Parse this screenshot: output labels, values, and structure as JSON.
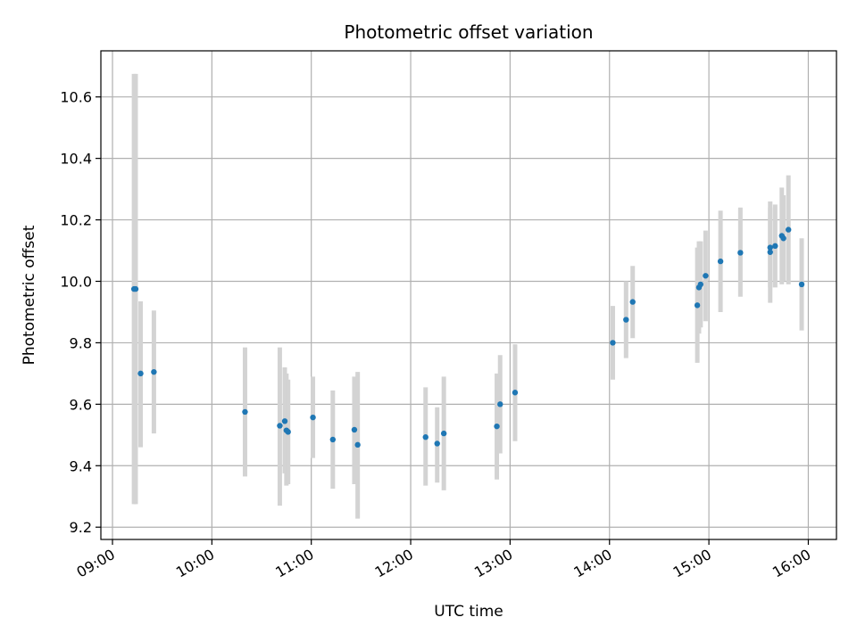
{
  "chart_data": {
    "type": "scatter",
    "title": "Photometric offset variation",
    "xlabel": "UTC time",
    "ylabel": "Photometric offset",
    "x_tick_labels": [
      "09:00",
      "10:00",
      "11:00",
      "12:00",
      "13:00",
      "14:00",
      "15:00",
      "16:00"
    ],
    "y_tick_labels": [
      "9.2",
      "9.4",
      "9.6",
      "9.8",
      "10.0",
      "10.2",
      "10.4",
      "10.6"
    ],
    "x_ticks": [
      "09:00",
      "10:00",
      "11:00",
      "12:00",
      "13:00",
      "14:00",
      "15:00",
      "16:00"
    ],
    "y_ticks": [
      9.2,
      9.4,
      9.6,
      9.8,
      10.0,
      10.2,
      10.4,
      10.6
    ],
    "xlim": [
      "08:53",
      "16:17"
    ],
    "ylim": [
      9.16,
      10.75
    ],
    "grid": true,
    "colors": {
      "point": "#1f77b4",
      "errorbar": "#d3d3d3",
      "grid": "#b0b0b0"
    },
    "points": [
      {
        "x": "09:13",
        "y": 9.975,
        "ylow": 9.275,
        "yhigh": 10.675
      },
      {
        "x": "09:14",
        "y": 9.975,
        "ylow": 9.275,
        "yhigh": 10.675
      },
      {
        "x": "09:17",
        "y": 9.7,
        "ylow": 9.46,
        "yhigh": 9.935
      },
      {
        "x": "09:25",
        "y": 9.705,
        "ylow": 9.505,
        "yhigh": 9.905
      },
      {
        "x": "10:20",
        "y": 9.575,
        "ylow": 9.365,
        "yhigh": 9.785
      },
      {
        "x": "10:41",
        "y": 9.53,
        "ylow": 9.27,
        "yhigh": 9.785
      },
      {
        "x": "10:44",
        "y": 9.545,
        "ylow": 9.375,
        "yhigh": 9.72
      },
      {
        "x": "10:45",
        "y": 9.515,
        "ylow": 9.335,
        "yhigh": 9.7
      },
      {
        "x": "10:46",
        "y": 9.51,
        "ylow": 9.34,
        "yhigh": 9.68
      },
      {
        "x": "11:01",
        "y": 9.557,
        "ylow": 9.425,
        "yhigh": 9.69
      },
      {
        "x": "11:13",
        "y": 9.485,
        "ylow": 9.325,
        "yhigh": 9.645
      },
      {
        "x": "11:26",
        "y": 9.517,
        "ylow": 9.34,
        "yhigh": 9.69
      },
      {
        "x": "11:28",
        "y": 9.468,
        "ylow": 9.228,
        "yhigh": 9.705
      },
      {
        "x": "12:09",
        "y": 9.493,
        "ylow": 9.335,
        "yhigh": 9.655
      },
      {
        "x": "12:16",
        "y": 9.472,
        "ylow": 9.345,
        "yhigh": 9.59
      },
      {
        "x": "12:20",
        "y": 9.505,
        "ylow": 9.32,
        "yhigh": 9.69
      },
      {
        "x": "12:52",
        "y": 9.528,
        "ylow": 9.355,
        "yhigh": 9.7
      },
      {
        "x": "12:54",
        "y": 9.6,
        "ylow": 9.44,
        "yhigh": 9.76
      },
      {
        "x": "13:03",
        "y": 9.638,
        "ylow": 9.48,
        "yhigh": 9.795
      },
      {
        "x": "14:02",
        "y": 9.8,
        "ylow": 9.68,
        "yhigh": 9.92
      },
      {
        "x": "14:10",
        "y": 9.875,
        "ylow": 9.75,
        "yhigh": 10.0
      },
      {
        "x": "14:14",
        "y": 9.933,
        "ylow": 9.815,
        "yhigh": 10.05
      },
      {
        "x": "14:53",
        "y": 9.922,
        "ylow": 9.735,
        "yhigh": 10.11
      },
      {
        "x": "14:54",
        "y": 9.98,
        "ylow": 9.83,
        "yhigh": 10.13
      },
      {
        "x": "14:55",
        "y": 9.99,
        "ylow": 9.85,
        "yhigh": 10.13
      },
      {
        "x": "14:58",
        "y": 10.018,
        "ylow": 9.87,
        "yhigh": 10.165
      },
      {
        "x": "15:07",
        "y": 10.065,
        "ylow": 9.9,
        "yhigh": 10.23
      },
      {
        "x": "15:19",
        "y": 10.093,
        "ylow": 9.95,
        "yhigh": 10.24
      },
      {
        "x": "15:37",
        "y": 10.11,
        "ylow": 9.93,
        "yhigh": 10.26
      },
      {
        "x": "15:37",
        "y": 10.095,
        "ylow": 9.98,
        "yhigh": 10.24
      },
      {
        "x": "15:40",
        "y": 10.115,
        "ylow": 9.98,
        "yhigh": 10.25
      },
      {
        "x": "15:44",
        "y": 10.148,
        "ylow": 9.99,
        "yhigh": 10.305
      },
      {
        "x": "15:45",
        "y": 10.14,
        "ylow": 10.0,
        "yhigh": 10.28
      },
      {
        "x": "15:48",
        "y": 10.168,
        "ylow": 9.99,
        "yhigh": 10.345
      },
      {
        "x": "15:56",
        "y": 9.99,
        "ylow": 9.84,
        "yhigh": 10.14
      }
    ]
  }
}
